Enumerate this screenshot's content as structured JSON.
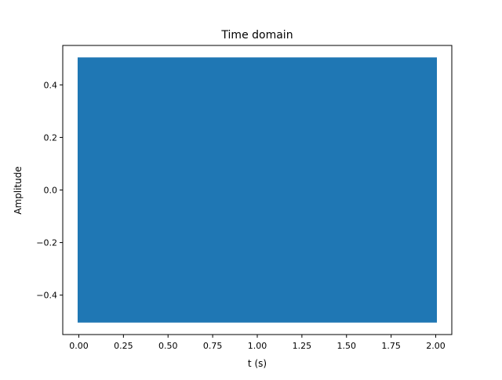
{
  "chart_data": {
    "type": "line",
    "title": "Time domain",
    "xlabel": "t (s)",
    "ylabel": "Amplitude",
    "xlim": [
      -0.09,
      2.09
    ],
    "ylim": [
      -0.55,
      0.55
    ],
    "x_ticks": [
      0.0,
      0.25,
      0.5,
      0.75,
      1.0,
      1.25,
      1.5,
      1.75,
      2.0
    ],
    "x_tick_labels": [
      "0.00",
      "0.25",
      "0.50",
      "0.75",
      "1.00",
      "1.25",
      "1.50",
      "1.75",
      "2.00"
    ],
    "y_ticks": [
      -0.4,
      -0.2,
      0.0,
      0.2,
      0.4
    ],
    "y_tick_labels": [
      "−0.4",
      "−0.2",
      "0.0",
      "0.2",
      "0.4"
    ],
    "grid": false,
    "series": [
      {
        "color": "#1f77b4",
        "x_range": [
          0.0,
          2.0
        ],
        "min": -0.5,
        "max": 0.5,
        "note_style": "dense oscillating signal filling envelope"
      }
    ]
  }
}
